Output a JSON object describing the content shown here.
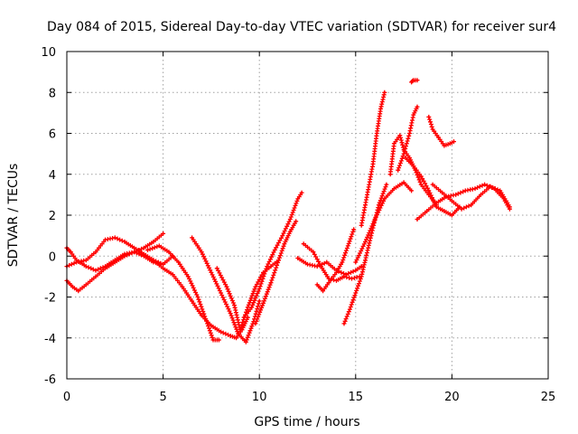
{
  "chart_data": {
    "type": "scatter",
    "title": "Day 084 of 2015, Sidereal Day-to-day VTEC variation (SDTVAR) for receiver sur4",
    "xlabel": "GPS time / hours",
    "ylabel": "SDTVAR / TECUs",
    "xlim": [
      0,
      25
    ],
    "ylim": [
      -6,
      10
    ],
    "xticks": [
      "0",
      "5",
      "10",
      "15",
      "20",
      "25"
    ],
    "yticks": [
      "-6",
      "-4",
      "-2",
      "0",
      "2",
      "4",
      "6",
      "8",
      "10"
    ],
    "grid": true,
    "legend": "none",
    "marker": "plus",
    "color": "#ff0000",
    "series": [
      {
        "x": [
          0.0,
          0.3,
          0.6,
          1.0,
          1.5,
          2.0,
          2.5,
          3.0,
          3.5,
          4.0,
          4.5,
          5.0
        ],
        "y": [
          -1.2,
          -1.5,
          -1.7,
          -1.4,
          -1.0,
          -0.6,
          -0.3,
          0.0,
          0.2,
          0.4,
          0.7,
          1.1
        ]
      },
      {
        "x": [
          0.0,
          0.2,
          0.5,
          1.0,
          1.5,
          2.0,
          2.5,
          3.0,
          3.5,
          4.0,
          4.5,
          5.0
        ],
        "y": [
          0.4,
          0.2,
          -0.2,
          -0.5,
          -0.7,
          -0.5,
          -0.2,
          0.1,
          0.2,
          0.0,
          -0.3,
          -0.4
        ]
      },
      {
        "x": [
          0.0,
          0.5,
          1.0,
          1.5,
          2.0,
          2.5,
          3.0,
          3.5,
          4.0,
          4.5,
          5.0,
          5.5
        ],
        "y": [
          -0.5,
          -0.3,
          -0.2,
          0.2,
          0.8,
          0.9,
          0.7,
          0.4,
          0.1,
          -0.2,
          -0.4,
          0.0
        ]
      },
      {
        "x": [
          4.2,
          4.8,
          5.3,
          5.8,
          6.3,
          6.8,
          7.3,
          7.6,
          7.9
        ],
        "y": [
          0.3,
          0.5,
          0.2,
          -0.3,
          -1.0,
          -2.0,
          -3.3,
          -4.1,
          -4.1
        ]
      },
      {
        "x": [
          4.5,
          5.0,
          5.5,
          6.0,
          6.5,
          7.0,
          7.5,
          8.0,
          8.5,
          8.8,
          9.1,
          9.4
        ],
        "y": [
          -0.2,
          -0.6,
          -0.9,
          -1.5,
          -2.2,
          -2.9,
          -3.4,
          -3.7,
          -3.9,
          -4.0,
          -3.6,
          -3.0
        ]
      },
      {
        "x": [
          6.5,
          7.0,
          7.5,
          8.0,
          8.5,
          8.9,
          9.3,
          9.7,
          10.0
        ],
        "y": [
          0.9,
          0.2,
          -0.8,
          -1.8,
          -2.8,
          -3.8,
          -4.2,
          -3.2,
          -2.2
        ]
      },
      {
        "x": [
          7.8,
          8.3,
          8.7,
          9.0,
          9.4,
          9.8,
          10.2,
          10.6,
          11.0
        ],
        "y": [
          -0.6,
          -1.5,
          -2.4,
          -3.6,
          -2.5,
          -1.5,
          -0.8,
          -0.5,
          -0.2
        ]
      },
      {
        "x": [
          9.2,
          9.6,
          10.0,
          10.4,
          10.8,
          11.2,
          11.6,
          12.0,
          12.2
        ],
        "y": [
          -3.0,
          -2.5,
          -1.6,
          -0.5,
          0.3,
          1.0,
          1.8,
          2.8,
          3.1
        ]
      },
      {
        "x": [
          9.8,
          10.2,
          10.6,
          11.0,
          11.3,
          11.6,
          11.9
        ],
        "y": [
          -3.3,
          -2.3,
          -1.3,
          -0.2,
          0.6,
          1.2,
          1.7
        ]
      },
      {
        "x": [
          12.0,
          12.5,
          13.0,
          13.5,
          14.0,
          14.5,
          15.0,
          15.3
        ],
        "y": [
          -0.1,
          -0.4,
          -0.5,
          -0.3,
          -0.7,
          -0.9,
          -0.7,
          -0.5
        ]
      },
      {
        "x": [
          12.3,
          12.8,
          13.2,
          13.6,
          14.0,
          14.4,
          14.8,
          15.2
        ],
        "y": [
          0.6,
          0.2,
          -0.5,
          -1.1,
          -1.2,
          -1.0,
          -1.1,
          -1.0
        ]
      },
      {
        "x": [
          13.0,
          13.3,
          13.6,
          14.0,
          14.3,
          14.6,
          14.9
        ],
        "y": [
          -1.4,
          -1.7,
          -1.3,
          -0.8,
          -0.3,
          0.5,
          1.3
        ]
      },
      {
        "x": [
          14.4,
          14.7,
          15.0,
          15.3,
          15.5,
          15.8,
          16.2,
          16.6
        ],
        "y": [
          -3.3,
          -2.6,
          -1.8,
          -1.0,
          -0.2,
          1.0,
          2.5,
          3.5
        ]
      },
      {
        "x": [
          15.3,
          15.6,
          15.9,
          16.1,
          16.3,
          16.5
        ],
        "y": [
          1.5,
          3.0,
          4.5,
          6.0,
          7.2,
          8.0
        ]
      },
      {
        "x": [
          15.0,
          15.5,
          16.0,
          16.5,
          17.0,
          17.5,
          17.9
        ],
        "y": [
          -0.3,
          0.7,
          1.8,
          2.8,
          3.3,
          3.6,
          3.2
        ]
      },
      {
        "x": [
          16.8,
          17.0,
          17.3,
          17.5,
          17.8,
          18.1,
          18.4,
          18.8,
          19.2
        ],
        "y": [
          4.0,
          5.5,
          5.9,
          5.2,
          4.8,
          4.2,
          3.5,
          3.0,
          2.5
        ]
      },
      {
        "x": [
          17.2,
          17.5,
          17.8,
          18.0,
          18.2
        ],
        "y": [
          4.2,
          5.0,
          6.0,
          6.9,
          7.3
        ]
      },
      {
        "x": [
          17.9,
          18.0,
          18.2
        ],
        "y": [
          8.5,
          8.6,
          8.6
        ]
      },
      {
        "x": [
          18.8,
          19.0,
          19.3,
          19.6,
          19.9,
          20.1
        ],
        "y": [
          6.8,
          6.2,
          5.8,
          5.4,
          5.5,
          5.6
        ]
      },
      {
        "x": [
          18.2,
          18.7,
          19.2,
          19.7,
          20.2,
          20.7,
          21.2,
          21.7,
          22.2,
          22.7,
          23.0
        ],
        "y": [
          1.8,
          2.2,
          2.6,
          2.9,
          3.0,
          3.2,
          3.3,
          3.5,
          3.3,
          2.8,
          2.3
        ]
      },
      {
        "x": [
          19.0,
          19.5,
          20.0,
          20.5,
          21.0,
          21.5,
          22.0,
          22.5,
          23.0
        ],
        "y": [
          3.5,
          3.1,
          2.7,
          2.3,
          2.5,
          3.0,
          3.4,
          3.2,
          2.4
        ]
      },
      {
        "x": [
          17.6,
          18.0,
          18.4,
          18.8,
          19.2,
          19.6,
          20.0,
          20.4
        ],
        "y": [
          4.8,
          4.4,
          3.9,
          3.2,
          2.4,
          2.2,
          2.0,
          2.4
        ]
      }
    ]
  }
}
